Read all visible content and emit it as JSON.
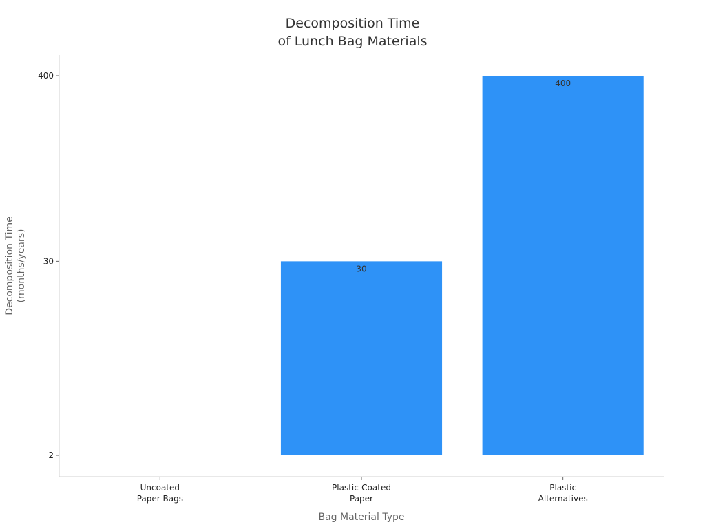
{
  "chart_data": {
    "type": "bar",
    "title": [
      "Decomposition Time",
      "of Lunch Bag Materials"
    ],
    "xlabel": "Bag Material Type",
    "ylabel": [
      "Decomposition Time",
      "(months/years)"
    ],
    "y_scale": "log",
    "ylim": [
      1.6,
      550
    ],
    "y_ticks": [
      {
        "value": 2,
        "label": "2"
      },
      {
        "value": 30,
        "label": "30"
      },
      {
        "value": 400,
        "label": "400"
      }
    ],
    "categories": [
      [
        "Uncoated",
        "Paper Bags"
      ],
      [
        "Plastic-Coated",
        "Paper"
      ],
      [
        "Plastic",
        "Alternatives"
      ]
    ],
    "values": [
      2,
      30,
      400
    ],
    "data_labels": [
      "",
      "30",
      "400"
    ],
    "bar_color": "#2e92f7",
    "grid": false,
    "legend": "none"
  }
}
